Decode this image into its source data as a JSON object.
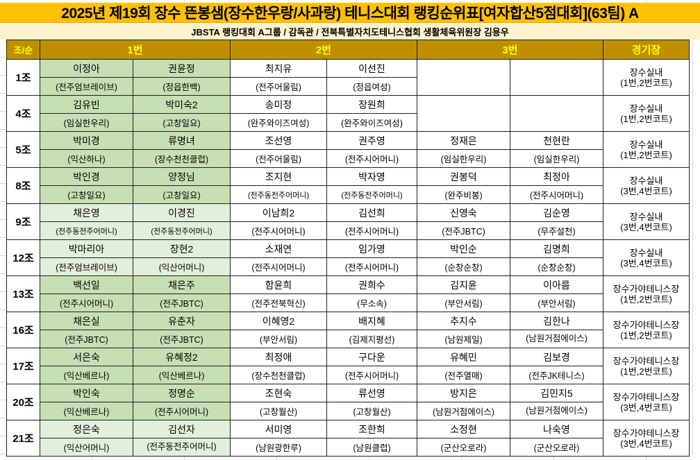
{
  "title": "2025년 제19회 장수 뜬봉샘(장수한우랑/사과랑) 테니스대회 랭킹순위표[여자합산5점대회](63팀) A",
  "subtitle": "JBSTA 랭킹대회 A그룹 / 감독관 / 전북특별자치도테니스협회 생활체육위원장 김용우",
  "columns": {
    "group": "조/순",
    "pair1": "1번",
    "pair2": "2번",
    "pair3": "3번",
    "venue": "경기장"
  },
  "colors": {
    "title_bar": "#FFC000",
    "subtitle_bar": "#FFF2CC",
    "header_bg": "#BF8F00",
    "header_text": "#FFFF00",
    "green_dark": "#C6E0B4",
    "green_light": "#E2EFDA"
  },
  "rows": [
    {
      "group": "1조",
      "shade": "dark",
      "players": [
        {
          "name": "이정아",
          "club": "(전주엄브레이브)"
        },
        {
          "name": "권윤정",
          "club": "(정읍한백)"
        },
        {
          "name": "최지유",
          "club": "(전주어울림)"
        },
        {
          "name": "이선진",
          "club": "(정읍여성)"
        },
        {
          "name": "",
          "club": ""
        },
        {
          "name": "",
          "club": ""
        }
      ],
      "venue": "장수실내",
      "court": "(1번,2번코트)"
    },
    {
      "group": "4조",
      "shade": "dark",
      "players": [
        {
          "name": "김유빈",
          "club": "(임실한우리)"
        },
        {
          "name": "박미숙2",
          "club": "(고창일요)"
        },
        {
          "name": "송미정",
          "club": "(완주와이즈여성)"
        },
        {
          "name": "장원희",
          "club": "(완주와이즈여성)"
        },
        {
          "name": "",
          "club": ""
        },
        {
          "name": "",
          "club": ""
        }
      ],
      "venue": "장수실내",
      "court": "(1번,2번코트)"
    },
    {
      "group": "5조",
      "shade": "dark",
      "players": [
        {
          "name": "박미경",
          "club": "(익산하나)"
        },
        {
          "name": "류명녀",
          "club": "(장수천천클럽)"
        },
        {
          "name": "조선영",
          "club": "(전주어울림)"
        },
        {
          "name": "권주영",
          "club": "(전주시어머니)"
        },
        {
          "name": "정재은",
          "club": "(임실한우리)"
        },
        {
          "name": "천현란",
          "club": "(임실한우리)"
        }
      ],
      "venue": "장수실내",
      "court": "(1번,2번코트)"
    },
    {
      "group": "8조",
      "shade": "dark",
      "players": [
        {
          "name": "박인경",
          "club": "(고창일요)"
        },
        {
          "name": "양정님",
          "club": "(고창일요)"
        },
        {
          "name": "조지현",
          "club": "(전주동전주어머니)"
        },
        {
          "name": "박자영",
          "club": "(전주동전주어머니)"
        },
        {
          "name": "권봉덕",
          "club": "(완주비봉)"
        },
        {
          "name": "최정아",
          "club": "(전주시어머니)"
        }
      ],
      "venue": "장수실내",
      "court": "(3번,4번코트)"
    },
    {
      "group": "9조",
      "shade": "light",
      "players": [
        {
          "name": "채은영",
          "club": "(전주동전주어머니)"
        },
        {
          "name": "이경진",
          "club": "(전주동전주어머니)"
        },
        {
          "name": "이남희2",
          "club": "(전주시어머니)"
        },
        {
          "name": "김선희",
          "club": "(전주시어머니)"
        },
        {
          "name": "신영숙",
          "club": "(전주JBTC)"
        },
        {
          "name": "김순영",
          "club": "(무주설천)"
        }
      ],
      "venue": "장수실내",
      "court": "(3번,4번코트)"
    },
    {
      "group": "12조",
      "shade": "light",
      "players": [
        {
          "name": "박마리아",
          "club": "(전주엄브레이브)"
        },
        {
          "name": "장현2",
          "club": "(익산어머니)"
        },
        {
          "name": "소재연",
          "club": "(전주시어머니)"
        },
        {
          "name": "임가영",
          "club": "(전주시어머니)"
        },
        {
          "name": "박인순",
          "club": "(순창순창)"
        },
        {
          "name": "김명희",
          "club": "(순창순창)"
        }
      ],
      "venue": "장수실내",
      "court": "(3번,4번코트)"
    },
    {
      "group": "13조",
      "shade": "dark",
      "players": [
        {
          "name": "백선일",
          "club": "(전주시어머니)"
        },
        {
          "name": "채은주",
          "club": "(전주JBTC)"
        },
        {
          "name": "함윤희",
          "club": "(전주전북혁신)"
        },
        {
          "name": "권희수",
          "club": "(무소속)"
        },
        {
          "name": "김지윤",
          "club": "(부안서림)"
        },
        {
          "name": "이아름",
          "club": "(부안서림)"
        }
      ],
      "venue": "장수가야테니스장",
      "court": "(1번,2번코트)"
    },
    {
      "group": "16조",
      "shade": "dark",
      "players": [
        {
          "name": "채은실",
          "club": "(전주JBTC)"
        },
        {
          "name": "유춘자",
          "club": "(전주JBTC)"
        },
        {
          "name": "이혜영2",
          "club": "(부안서림)"
        },
        {
          "name": "배지혜",
          "club": "(김제지평선)"
        },
        {
          "name": "추지수",
          "club": "(남원제일)"
        },
        {
          "name": "김한나",
          "club": "(남원거점에이스)",
          "wrap": true
        }
      ],
      "venue": "장수가야테니스장",
      "court": "(1번,2번코트)"
    },
    {
      "group": "17조",
      "shade": "dark",
      "players": [
        {
          "name": "서은숙",
          "club": "(익산베르나)"
        },
        {
          "name": "유혜정2",
          "club": "(익산베르나)"
        },
        {
          "name": "최정애",
          "club": "(장수천천클럽)"
        },
        {
          "name": "구다운",
          "club": "(전주시어머니)"
        },
        {
          "name": "유혜민",
          "club": "(전주열매)"
        },
        {
          "name": "김보경",
          "club": "(전주JK테니스)"
        }
      ],
      "venue": "장수가야테니스장",
      "court": "(1번,2번코트)"
    },
    {
      "group": "20조",
      "shade": "dark",
      "players": [
        {
          "name": "박인숙",
          "club": "(익산베르나)"
        },
        {
          "name": "정명순",
          "club": "(전주시어머니)"
        },
        {
          "name": "조현숙",
          "club": "(고창월산)"
        },
        {
          "name": "류선영",
          "club": "(고창월산)"
        },
        {
          "name": "방지은",
          "club": "(남원거점에이스)"
        },
        {
          "name": "김민지5",
          "club": "(남원거점에이스)",
          "wrap": true
        }
      ],
      "venue": "장수가야테니스장",
      "court": "(3번,4번코트)"
    },
    {
      "group": "21조",
      "shade": "light",
      "players": [
        {
          "name": "정은숙",
          "club": "(익산어머니)"
        },
        {
          "name": "김선자",
          "club": "(전주동전주어머니)",
          "wrap": true
        },
        {
          "name": "서미영",
          "club": "(남원광한루)"
        },
        {
          "name": "조한희",
          "club": "(남원클럽)"
        },
        {
          "name": "소정현",
          "club": "(군산오로라)"
        },
        {
          "name": "나숙영",
          "club": "(군산오로라)"
        }
      ],
      "venue": "장수가야테니스장",
      "court": "(3번,4번코트)"
    }
  ]
}
